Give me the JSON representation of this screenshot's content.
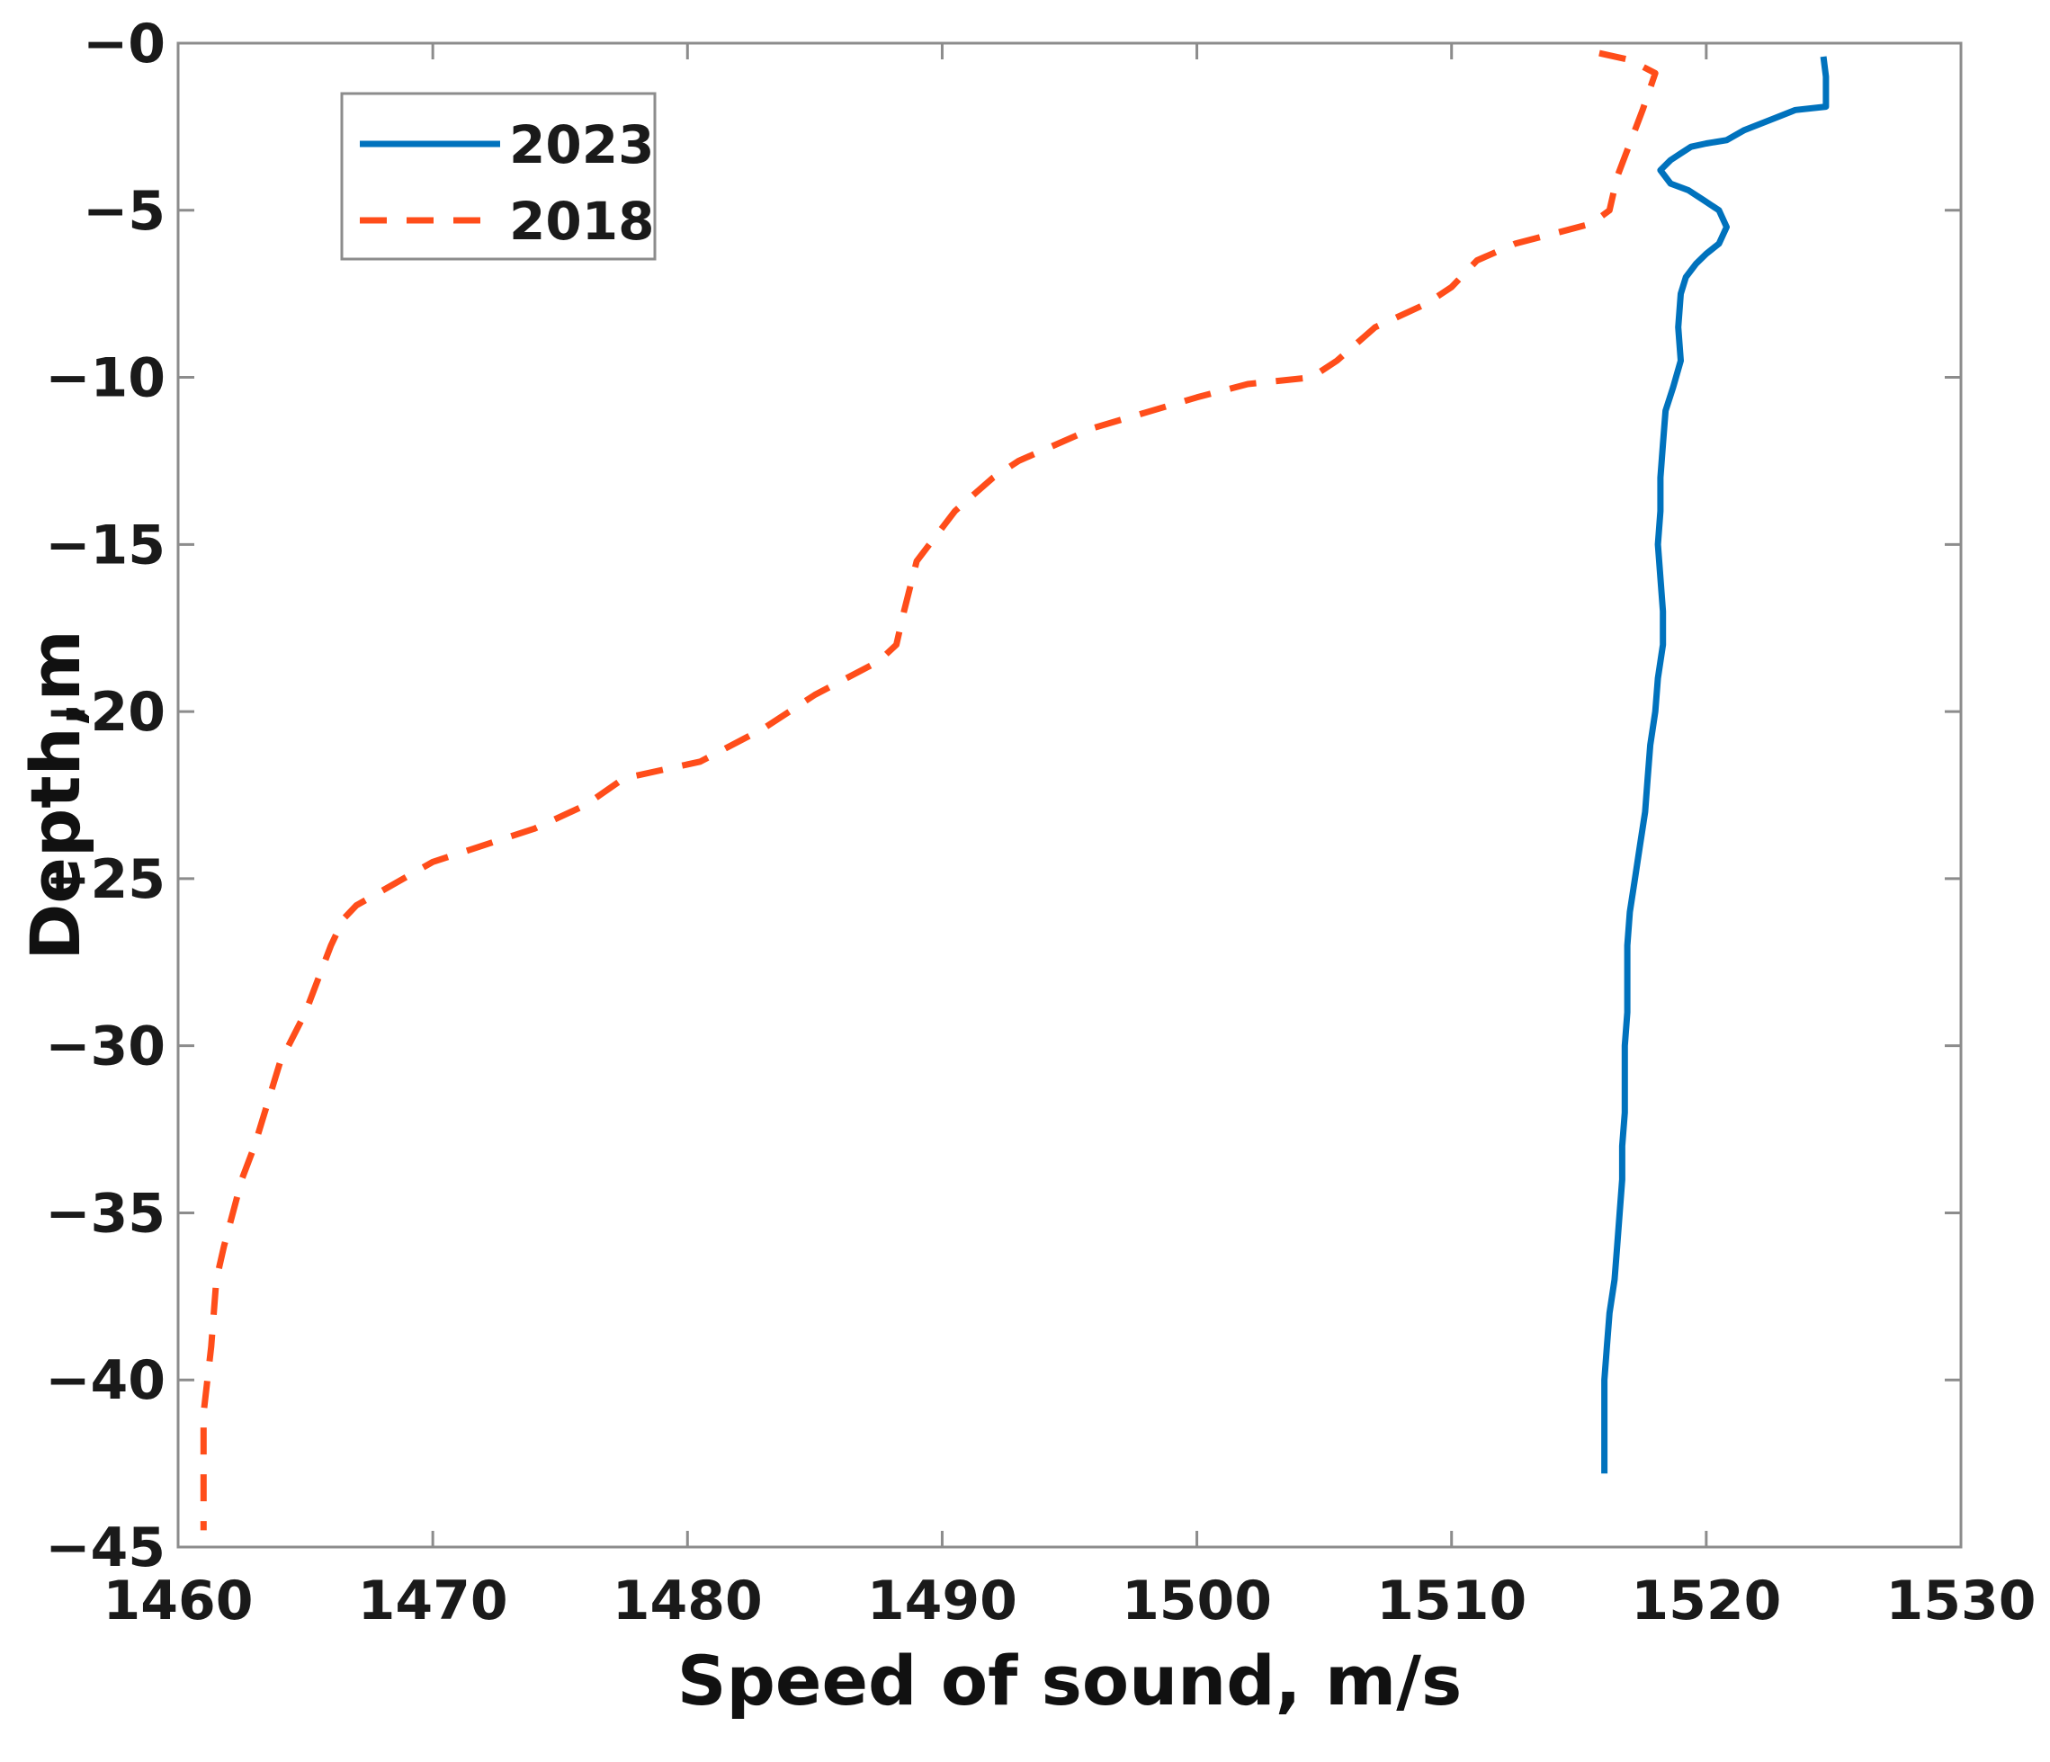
{
  "chart_data": {
    "type": "line",
    "title": "",
    "xlabel": "Speed of sound, m/s",
    "ylabel": "Depth,m",
    "xlim": [
      1460,
      1530
    ],
    "ylim": [
      -45,
      0
    ],
    "x_ticks": [
      1460,
      1470,
      1480,
      1490,
      1500,
      1510,
      1520,
      1530
    ],
    "y_ticks": [
      0,
      -5,
      -10,
      -15,
      -20,
      -25,
      -30,
      -35,
      -40,
      -45
    ],
    "y_tick_labels": [
      "−0",
      "−5",
      "−10",
      "−15",
      "−20",
      "−25",
      "−30",
      "−35",
      "−40",
      "−45"
    ],
    "grid": false,
    "legend_position": "top-left",
    "series": [
      {
        "name": "2023",
        "color": "#0072BD",
        "style": "solid",
        "points": [
          [
            1524.6,
            -0.4
          ],
          [
            1524.7,
            -1.0
          ],
          [
            1524.7,
            -1.9
          ],
          [
            1523.5,
            -2.0
          ],
          [
            1522.5,
            -2.3
          ],
          [
            1521.5,
            -2.6
          ],
          [
            1520.8,
            -2.9
          ],
          [
            1520.0,
            -3.0
          ],
          [
            1519.4,
            -3.1
          ],
          [
            1519.0,
            -3.3
          ],
          [
            1518.6,
            -3.5
          ],
          [
            1518.2,
            -3.8
          ],
          [
            1518.6,
            -4.2
          ],
          [
            1519.3,
            -4.4
          ],
          [
            1519.9,
            -4.7
          ],
          [
            1520.5,
            -5.0
          ],
          [
            1520.8,
            -5.5
          ],
          [
            1520.5,
            -6.0
          ],
          [
            1520.0,
            -6.3
          ],
          [
            1519.6,
            -6.6
          ],
          [
            1519.2,
            -7.0
          ],
          [
            1519.0,
            -7.5
          ],
          [
            1518.9,
            -8.5
          ],
          [
            1519.0,
            -9.5
          ],
          [
            1518.7,
            -10.3
          ],
          [
            1518.4,
            -11.0
          ],
          [
            1518.3,
            -12.0
          ],
          [
            1518.2,
            -13.0
          ],
          [
            1518.2,
            -14.0
          ],
          [
            1518.1,
            -15.0
          ],
          [
            1518.2,
            -16.0
          ],
          [
            1518.3,
            -17.0
          ],
          [
            1518.3,
            -18.0
          ],
          [
            1518.1,
            -19.0
          ],
          [
            1518.0,
            -20.0
          ],
          [
            1517.8,
            -21.0
          ],
          [
            1517.7,
            -22.0
          ],
          [
            1517.6,
            -23.0
          ],
          [
            1517.4,
            -24.0
          ],
          [
            1517.2,
            -25.0
          ],
          [
            1517.0,
            -26.0
          ],
          [
            1516.9,
            -27.0
          ],
          [
            1516.9,
            -28.0
          ],
          [
            1516.9,
            -29.0
          ],
          [
            1516.8,
            -30.0
          ],
          [
            1516.8,
            -31.0
          ],
          [
            1516.8,
            -32.0
          ],
          [
            1516.7,
            -33.0
          ],
          [
            1516.7,
            -34.0
          ],
          [
            1516.6,
            -35.0
          ],
          [
            1516.5,
            -36.0
          ],
          [
            1516.4,
            -37.0
          ],
          [
            1516.2,
            -38.0
          ],
          [
            1516.1,
            -39.0
          ],
          [
            1516.0,
            -40.0
          ],
          [
            1516.0,
            -41.0
          ],
          [
            1516.0,
            -42.0
          ],
          [
            1516.0,
            -42.8
          ]
        ]
      },
      {
        "name": "2018",
        "color": "#FF4D1A",
        "style": "dashed",
        "points": [
          [
            1515.8,
            -0.3
          ],
          [
            1517.0,
            -0.5
          ],
          [
            1518.0,
            -0.9
          ],
          [
            1517.5,
            -2.0
          ],
          [
            1517.0,
            -3.0
          ],
          [
            1516.5,
            -4.0
          ],
          [
            1516.2,
            -5.0
          ],
          [
            1515.5,
            -5.4
          ],
          [
            1514.0,
            -5.7
          ],
          [
            1512.5,
            -6.0
          ],
          [
            1511.0,
            -6.5
          ],
          [
            1510.0,
            -7.3
          ],
          [
            1509.0,
            -7.8
          ],
          [
            1507.0,
            -8.5
          ],
          [
            1505.5,
            -9.5
          ],
          [
            1504.5,
            -10.0
          ],
          [
            1502.0,
            -10.2
          ],
          [
            1500.0,
            -10.6
          ],
          [
            1496.0,
            -11.5
          ],
          [
            1493.0,
            -12.5
          ],
          [
            1492.0,
            -13.0
          ],
          [
            1490.5,
            -14.0
          ],
          [
            1489.0,
            -15.5
          ],
          [
            1488.5,
            -17.0
          ],
          [
            1488.2,
            -18.0
          ],
          [
            1487.5,
            -18.5
          ],
          [
            1485.0,
            -19.5
          ],
          [
            1483.0,
            -20.5
          ],
          [
            1480.5,
            -21.5
          ],
          [
            1477.5,
            -22.0
          ],
          [
            1476.0,
            -22.8
          ],
          [
            1474.0,
            -23.5
          ],
          [
            1470.0,
            -24.5
          ],
          [
            1467.0,
            -25.8
          ],
          [
            1466.5,
            -26.2
          ],
          [
            1466.0,
            -27.0
          ],
          [
            1465.0,
            -29.0
          ],
          [
            1464.0,
            -30.5
          ],
          [
            1463.0,
            -33.0
          ],
          [
            1462.5,
            -34.0
          ],
          [
            1461.8,
            -36.0
          ],
          [
            1461.5,
            -37.0
          ],
          [
            1461.3,
            -39.0
          ],
          [
            1461.0,
            -41.0
          ],
          [
            1461.0,
            -43.0
          ],
          [
            1461.0,
            -44.5
          ]
        ]
      }
    ]
  }
}
